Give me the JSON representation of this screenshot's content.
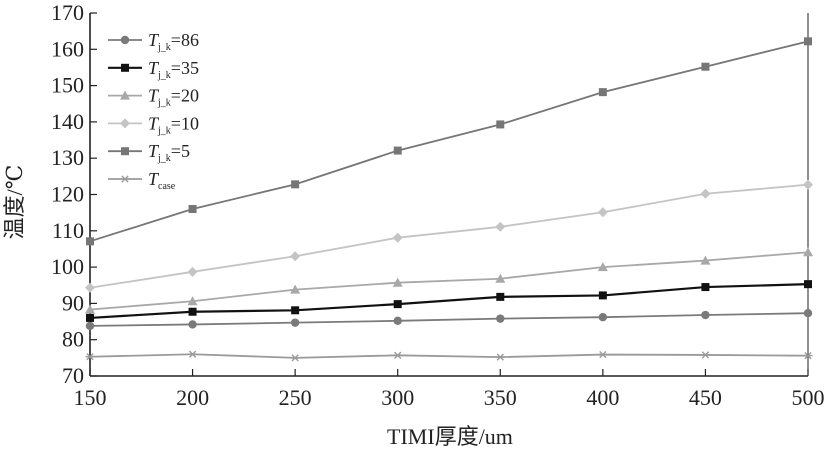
{
  "chart_data": {
    "type": "line",
    "title": "",
    "xlabel": "TIMI厚度/um",
    "ylabel": "温度/℃",
    "xlim": [
      150,
      500
    ],
    "ylim": [
      70,
      170
    ],
    "x_ticks": [
      "150",
      "200",
      "250",
      "300",
      "350",
      "400",
      "450",
      "500"
    ],
    "y_ticks": [
      "70",
      "80",
      "90",
      "100",
      "110",
      "120",
      "130",
      "140",
      "150",
      "160",
      "170"
    ],
    "x": [
      150,
      200,
      250,
      300,
      350,
      400,
      450,
      500
    ],
    "legend_position": "top-left",
    "series": [
      {
        "name": "Tj_k=86",
        "label_main": "T",
        "label_sub": "j_k",
        "label_rest": "=86",
        "marker": "circle",
        "color": "#7a7a7a",
        "values": [
          83.8,
          84.2,
          84.7,
          85.2,
          85.8,
          86.2,
          86.8,
          87.3
        ]
      },
      {
        "name": "Tj_k=35",
        "label_main": "T",
        "label_sub": "j_k",
        "label_rest": "=35",
        "marker": "square",
        "color": "#111111",
        "values": [
          86.0,
          87.7,
          88.1,
          89.8,
          91.8,
          92.2,
          94.5,
          95.3
        ]
      },
      {
        "name": "Tj_k=20",
        "label_main": "T",
        "label_sub": "j_k",
        "label_rest": "=20",
        "marker": "triangle",
        "color": "#a8a8a8",
        "values": [
          88.3,
          90.6,
          93.8,
          95.7,
          96.8,
          100.0,
          101.8,
          104.1
        ]
      },
      {
        "name": "Tj_k=10",
        "label_main": "T",
        "label_sub": "j_k",
        "label_rest": "=10",
        "marker": "diamond",
        "color": "#c4c4c4",
        "values": [
          94.3,
          98.7,
          103.0,
          108.1,
          111.1,
          115.1,
          120.2,
          122.7
        ]
      },
      {
        "name": "Tj_k=5",
        "label_main": "T",
        "label_sub": "j_k",
        "label_rest": "=5",
        "marker": "square",
        "color": "#767676",
        "values": [
          107.1,
          116.0,
          122.8,
          132.1,
          139.3,
          148.2,
          155.2,
          162.2
        ]
      },
      {
        "name": "Tcase",
        "label_main": "T",
        "label_sub": "case",
        "label_rest": "",
        "marker": "star",
        "color": "#9a9a9a",
        "values": [
          75.3,
          76.0,
          75.0,
          75.7,
          75.2,
          75.9,
          75.8,
          75.6
        ]
      }
    ]
  }
}
